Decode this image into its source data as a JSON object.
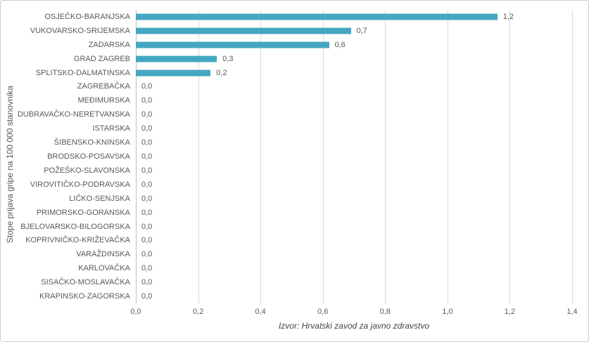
{
  "colors": {
    "bar": "#45a7c1",
    "text": "#595959",
    "gridline": "#d9d9d9",
    "axis_line": "#bfbfbf",
    "frame_border": "#cdcdcd"
  },
  "chart_data": {
    "type": "bar",
    "orientation": "horizontal",
    "ylabel": "Stope prijava gripe na 100 000 stanovnika",
    "xlabel": "Izvor: Hrvatski zavod za javno zdravstvo",
    "xlim": [
      0,
      1.4
    ],
    "x_ticks": [
      "0,0",
      "0,2",
      "0,4",
      "0,6",
      "0,8",
      "1,0",
      "1,2",
      "1,4"
    ],
    "grid": true,
    "legend": false,
    "bar_color": "#45a7c1",
    "categories": [
      "OSJEČKO-BARANJSKA",
      "VUKOVARSKO-SRIJEMSKA",
      "ZADARSKA",
      "GRAD ZAGREB",
      "SPLITSKO-DALMATINSKA",
      "ZAGREBAČKA",
      "MEĐIMURSKA",
      "DUBRAVAČKO-NERETVANSKA",
      "ISTARSKA",
      "ŠIBENSKO-KNINSKA",
      "BRODSKO-POSAVSKA",
      "POŽEŠKO-SLAVONSKA",
      "VIROVITIČKO-PODRAVSKA",
      "LIČKO-SENJSKA",
      "PRIMORSKO-GORANSKA",
      "BJELOVARSKO-BILOGORSKA",
      "KOPRIVNIČKO-KRIŽEVAČKA",
      "VARAŽDINSKA",
      "KARLOVAČKA",
      "SISAČKO-MOSLAVAČKA",
      "KRAPINSKO-ZAGORSKA"
    ],
    "values": [
      1.16,
      0.69,
      0.62,
      0.26,
      0.24,
      0,
      0,
      0,
      0,
      0,
      0,
      0,
      0,
      0,
      0,
      0,
      0,
      0,
      0,
      0,
      0
    ],
    "value_labels": [
      "1,2",
      "0,7",
      "0,6",
      "0,3",
      "0,2",
      "0,0",
      "0,0",
      "0,0",
      "0,0",
      "0,0",
      "0,0",
      "0,0",
      "0,0",
      "0,0",
      "0,0",
      "0,0",
      "0,0",
      "0,0",
      "0,0",
      "0,0",
      "0,0"
    ]
  }
}
